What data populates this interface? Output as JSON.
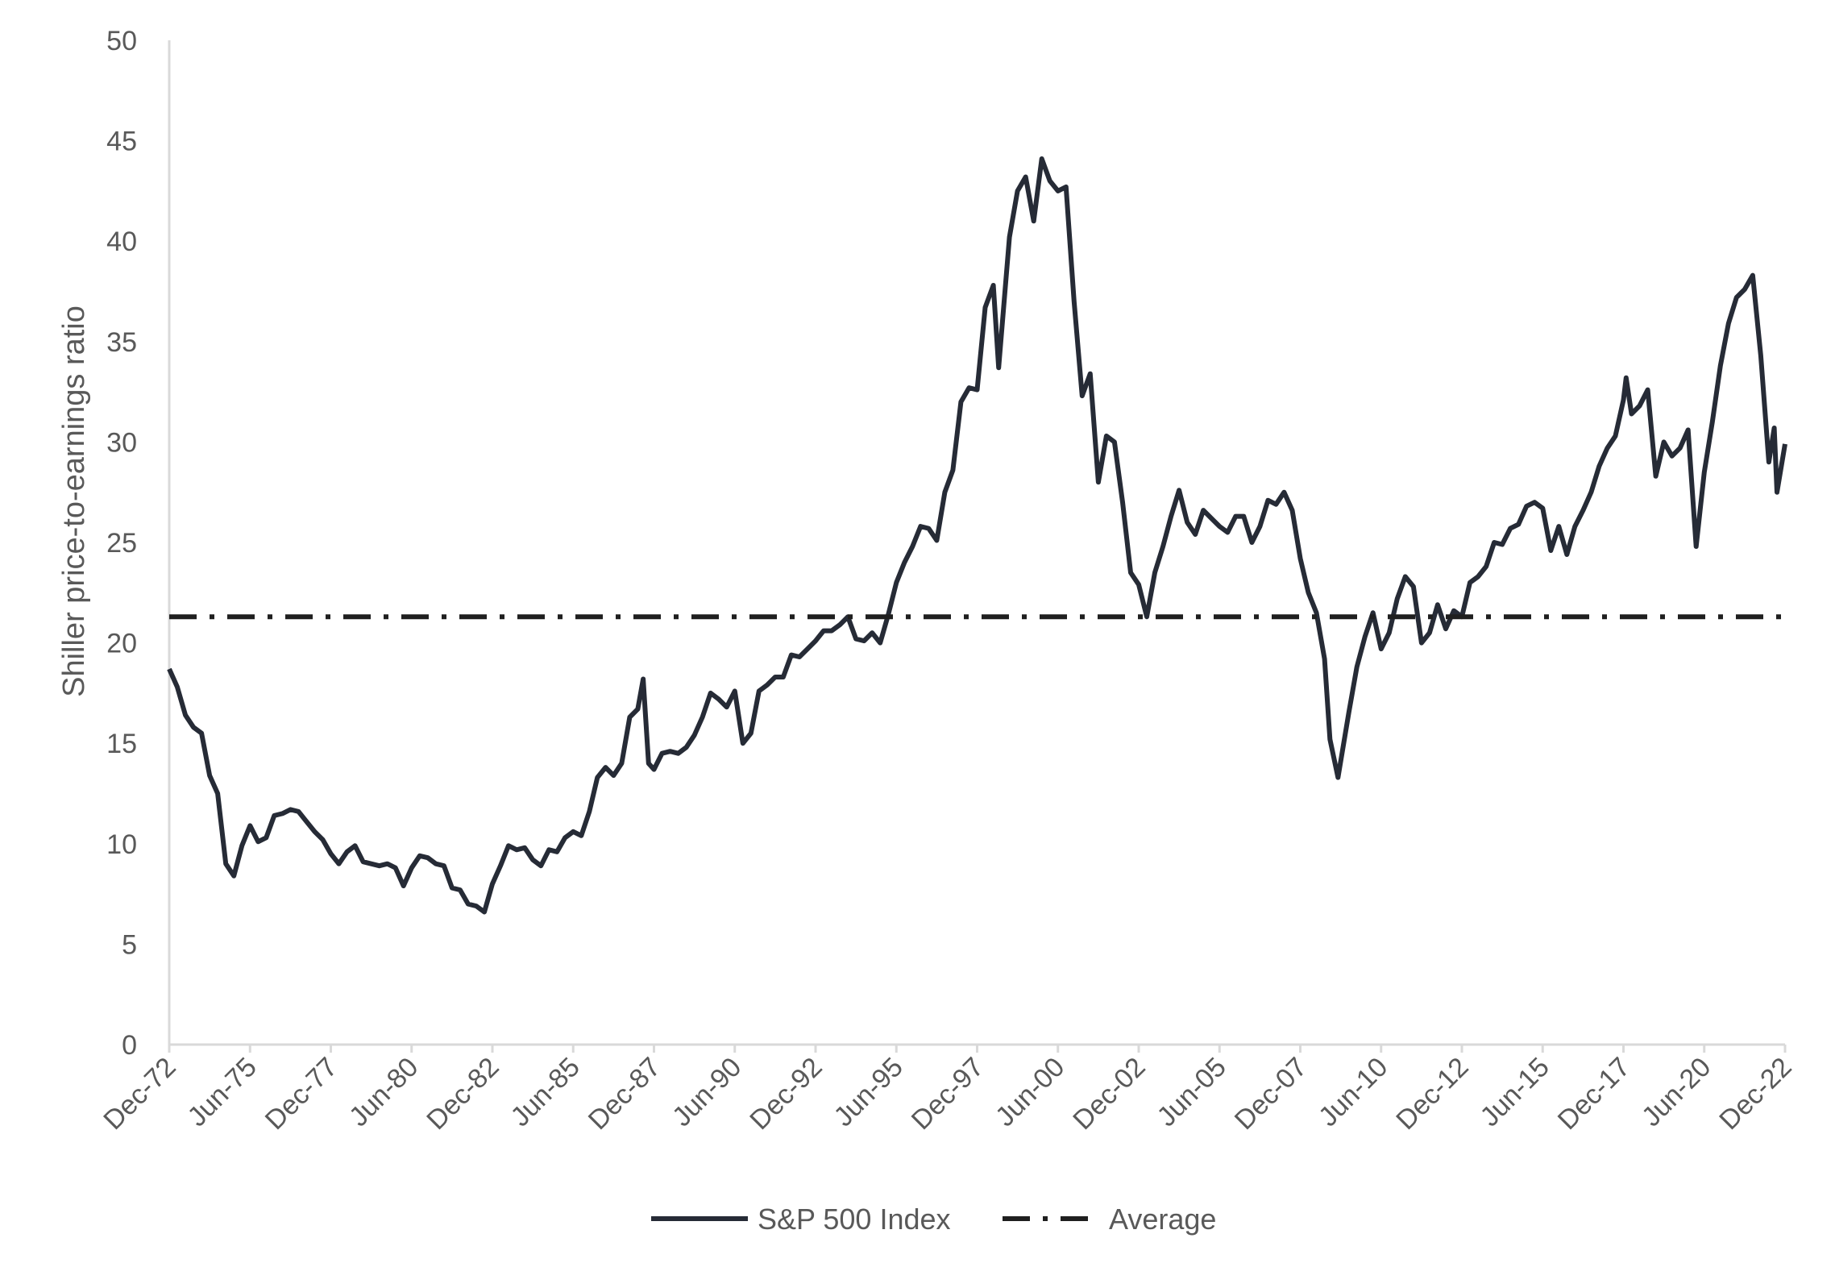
{
  "chart_data": {
    "type": "line",
    "ylabel": "Shiller price-to-earnings ratio",
    "xlabel": "",
    "title": "",
    "ylim": [
      0,
      50
    ],
    "yticks": [
      0,
      5,
      10,
      15,
      20,
      25,
      30,
      35,
      40,
      45,
      50
    ],
    "xlim": [
      "Dec-72",
      "Dec-22"
    ],
    "xtick_labels": [
      "Dec-72",
      "Jun-75",
      "Dec-77",
      "Jun-80",
      "Dec-82",
      "Jun-85",
      "Dec-87",
      "Jun-90",
      "Dec-92",
      "Jun-95",
      "Dec-97",
      "Jun-00",
      "Dec-02",
      "Jun-05",
      "Dec-07",
      "Jun-10",
      "Dec-12",
      "Jun-15",
      "Dec-17",
      "Jun-20",
      "Dec-22"
    ],
    "grid": false,
    "legend_position": "bottom",
    "series": [
      {
        "name": "S&P 500 Index",
        "style": "solid",
        "color": "#262b36",
        "points": [
          [
            "Dec-72",
            18.7
          ],
          [
            "Mar-73",
            17.8
          ],
          [
            "Jun-73",
            16.4
          ],
          [
            "Sep-73",
            15.8
          ],
          [
            "Dec-73",
            15.5
          ],
          [
            "Mar-74",
            13.4
          ],
          [
            "Jun-74",
            12.5
          ],
          [
            "Sep-74",
            9.0
          ],
          [
            "Dec-74",
            8.4
          ],
          [
            "Mar-75",
            9.9
          ],
          [
            "Jun-75",
            10.9
          ],
          [
            "Sep-75",
            10.1
          ],
          [
            "Dec-75",
            10.3
          ],
          [
            "Mar-76",
            11.4
          ],
          [
            "Jun-76",
            11.5
          ],
          [
            "Sep-76",
            11.7
          ],
          [
            "Dec-76",
            11.6
          ],
          [
            "Mar-77",
            11.1
          ],
          [
            "Jun-77",
            10.6
          ],
          [
            "Sep-77",
            10.2
          ],
          [
            "Dec-77",
            9.5
          ],
          [
            "Mar-78",
            9.0
          ],
          [
            "Jun-78",
            9.6
          ],
          [
            "Sep-78",
            9.9
          ],
          [
            "Dec-78",
            9.1
          ],
          [
            "Mar-79",
            9.0
          ],
          [
            "Jun-79",
            8.9
          ],
          [
            "Sep-79",
            9.0
          ],
          [
            "Dec-79",
            8.8
          ],
          [
            "Mar-80",
            7.9
          ],
          [
            "Jun-80",
            8.8
          ],
          [
            "Sep-80",
            9.4
          ],
          [
            "Dec-80",
            9.3
          ],
          [
            "Mar-81",
            9.0
          ],
          [
            "Jun-81",
            8.9
          ],
          [
            "Sep-81",
            7.8
          ],
          [
            "Dec-81",
            7.7
          ],
          [
            "Mar-82",
            7.0
          ],
          [
            "Jun-82",
            6.9
          ],
          [
            "Sep-82",
            6.6
          ],
          [
            "Dec-82",
            8.0
          ],
          [
            "Mar-83",
            8.9
          ],
          [
            "Jun-83",
            9.9
          ],
          [
            "Sep-83",
            9.7
          ],
          [
            "Dec-83",
            9.8
          ],
          [
            "Mar-84",
            9.2
          ],
          [
            "Jun-84",
            8.9
          ],
          [
            "Sep-84",
            9.7
          ],
          [
            "Dec-84",
            9.6
          ],
          [
            "Mar-85",
            10.3
          ],
          [
            "Jun-85",
            10.6
          ],
          [
            "Sep-85",
            10.4
          ],
          [
            "Dec-85",
            11.6
          ],
          [
            "Mar-86",
            13.3
          ],
          [
            "Jun-86",
            13.8
          ],
          [
            "Sep-86",
            13.4
          ],
          [
            "Dec-86",
            14.0
          ],
          [
            "Mar-87",
            16.3
          ],
          [
            "Jun-87",
            16.7
          ],
          [
            "Aug-87",
            18.2
          ],
          [
            "Oct-87",
            14.0
          ],
          [
            "Dec-87",
            13.7
          ],
          [
            "Mar-88",
            14.5
          ],
          [
            "Jun-88",
            14.6
          ],
          [
            "Sep-88",
            14.5
          ],
          [
            "Dec-88",
            14.8
          ],
          [
            "Mar-89",
            15.4
          ],
          [
            "Jun-89",
            16.3
          ],
          [
            "Sep-89",
            17.5
          ],
          [
            "Dec-89",
            17.2
          ],
          [
            "Mar-90",
            16.8
          ],
          [
            "Jun-90",
            17.6
          ],
          [
            "Sep-90",
            15.0
          ],
          [
            "Dec-90",
            15.5
          ],
          [
            "Mar-91",
            17.6
          ],
          [
            "Jun-91",
            17.9
          ],
          [
            "Sep-91",
            18.3
          ],
          [
            "Dec-91",
            18.3
          ],
          [
            "Mar-92",
            19.4
          ],
          [
            "Jun-92",
            19.3
          ],
          [
            "Sep-92",
            19.7
          ],
          [
            "Dec-92",
            20.1
          ],
          [
            "Mar-93",
            20.6
          ],
          [
            "Jun-93",
            20.6
          ],
          [
            "Sep-93",
            20.9
          ],
          [
            "Dec-93",
            21.3
          ],
          [
            "Mar-94",
            20.2
          ],
          [
            "Jun-94",
            20.1
          ],
          [
            "Sep-94",
            20.5
          ],
          [
            "Dec-94",
            20.0
          ],
          [
            "Mar-95",
            21.4
          ],
          [
            "Jun-95",
            23.0
          ],
          [
            "Sep-95",
            24.0
          ],
          [
            "Dec-95",
            24.8
          ],
          [
            "Mar-96",
            25.8
          ],
          [
            "Jun-96",
            25.7
          ],
          [
            "Sep-96",
            25.1
          ],
          [
            "Dec-96",
            27.5
          ],
          [
            "Mar-97",
            28.6
          ],
          [
            "Jun-97",
            32.0
          ],
          [
            "Sep-97",
            32.7
          ],
          [
            "Dec-97",
            32.6
          ],
          [
            "Mar-98",
            36.7
          ],
          [
            "Jun-98",
            37.8
          ],
          [
            "Aug-98",
            33.7
          ],
          [
            "Dec-98",
            40.2
          ],
          [
            "Mar-99",
            42.5
          ],
          [
            "Jun-99",
            43.2
          ],
          [
            "Sep-99",
            41.0
          ],
          [
            "Dec-99",
            44.1
          ],
          [
            "Mar-00",
            43.0
          ],
          [
            "Jun-00",
            42.5
          ],
          [
            "Sep-00",
            42.7
          ],
          [
            "Dec-00",
            37.0
          ],
          [
            "Mar-01",
            32.3
          ],
          [
            "Jun-01",
            33.4
          ],
          [
            "Sep-01",
            28.0
          ],
          [
            "Dec-01",
            30.3
          ],
          [
            "Mar-02",
            30.0
          ],
          [
            "Jun-02",
            27.0
          ],
          [
            "Sep-02",
            23.5
          ],
          [
            "Dec-02",
            22.9
          ],
          [
            "Mar-03",
            21.3
          ],
          [
            "Jun-03",
            23.5
          ],
          [
            "Sep-03",
            24.8
          ],
          [
            "Dec-03",
            26.3
          ],
          [
            "Mar-04",
            27.6
          ],
          [
            "Jun-04",
            26.0
          ],
          [
            "Sep-04",
            25.4
          ],
          [
            "Dec-04",
            26.6
          ],
          [
            "Mar-05",
            26.2
          ],
          [
            "Jun-05",
            25.8
          ],
          [
            "Sep-05",
            25.5
          ],
          [
            "Dec-05",
            26.3
          ],
          [
            "Mar-06",
            26.3
          ],
          [
            "Jun-06",
            25.0
          ],
          [
            "Sep-06",
            25.8
          ],
          [
            "Dec-06",
            27.1
          ],
          [
            "Mar-07",
            26.9
          ],
          [
            "Jun-07",
            27.5
          ],
          [
            "Sep-07",
            26.6
          ],
          [
            "Dec-07",
            24.2
          ],
          [
            "Mar-08",
            22.5
          ],
          [
            "Jun-08",
            21.5
          ],
          [
            "Sep-08",
            19.2
          ],
          [
            "Nov-08",
            15.2
          ],
          [
            "Feb-09",
            13.3
          ],
          [
            "Jun-09",
            16.5
          ],
          [
            "Sep-09",
            18.8
          ],
          [
            "Dec-09",
            20.3
          ],
          [
            "Mar-10",
            21.5
          ],
          [
            "Jun-10",
            19.7
          ],
          [
            "Sep-10",
            20.5
          ],
          [
            "Dec-10",
            22.2
          ],
          [
            "Mar-11",
            23.3
          ],
          [
            "Jun-11",
            22.8
          ],
          [
            "Sep-11",
            20.0
          ],
          [
            "Dec-11",
            20.5
          ],
          [
            "Mar-12",
            21.9
          ],
          [
            "Jun-12",
            20.7
          ],
          [
            "Sep-12",
            21.6
          ],
          [
            "Dec-12",
            21.3
          ],
          [
            "Mar-13",
            23.0
          ],
          [
            "Jun-13",
            23.3
          ],
          [
            "Sep-13",
            23.8
          ],
          [
            "Dec-13",
            25.0
          ],
          [
            "Mar-14",
            24.9
          ],
          [
            "Jun-14",
            25.7
          ],
          [
            "Sep-14",
            25.9
          ],
          [
            "Dec-14",
            26.8
          ],
          [
            "Mar-15",
            27.0
          ],
          [
            "Jun-15",
            26.7
          ],
          [
            "Sep-15",
            24.6
          ],
          [
            "Dec-15",
            25.8
          ],
          [
            "Mar-16",
            24.4
          ],
          [
            "Jun-16",
            25.8
          ],
          [
            "Sep-16",
            26.6
          ],
          [
            "Dec-16",
            27.5
          ],
          [
            "Mar-17",
            28.8
          ],
          [
            "Jun-17",
            29.7
          ],
          [
            "Sep-17",
            30.3
          ],
          [
            "Dec-17",
            32.1
          ],
          [
            "Jan-18",
            33.2
          ],
          [
            "Mar-18",
            31.4
          ],
          [
            "Jun-18",
            31.8
          ],
          [
            "Sep-18",
            32.6
          ],
          [
            "Dec-18",
            28.3
          ],
          [
            "Mar-19",
            30.0
          ],
          [
            "Jun-19",
            29.3
          ],
          [
            "Sep-19",
            29.7
          ],
          [
            "Dec-19",
            30.6
          ],
          [
            "Mar-20",
            24.8
          ],
          [
            "Jun-20",
            28.5
          ],
          [
            "Sep-20",
            31.0
          ],
          [
            "Dec-20",
            33.8
          ],
          [
            "Mar-21",
            35.9
          ],
          [
            "Jun-21",
            37.2
          ],
          [
            "Sep-21",
            37.6
          ],
          [
            "Dec-21",
            38.3
          ],
          [
            "Mar-22",
            34.3
          ],
          [
            "Jun-22",
            29.0
          ],
          [
            "Aug-22",
            30.7
          ],
          [
            "Sep-22",
            27.5
          ],
          [
            "Dec-22",
            29.9
          ]
        ]
      },
      {
        "name": "Average",
        "style": "dash-dot",
        "color": "#1f1f1f",
        "points": [
          [
            "Dec-72",
            21.3
          ],
          [
            "Dec-22",
            21.3
          ]
        ]
      }
    ]
  }
}
